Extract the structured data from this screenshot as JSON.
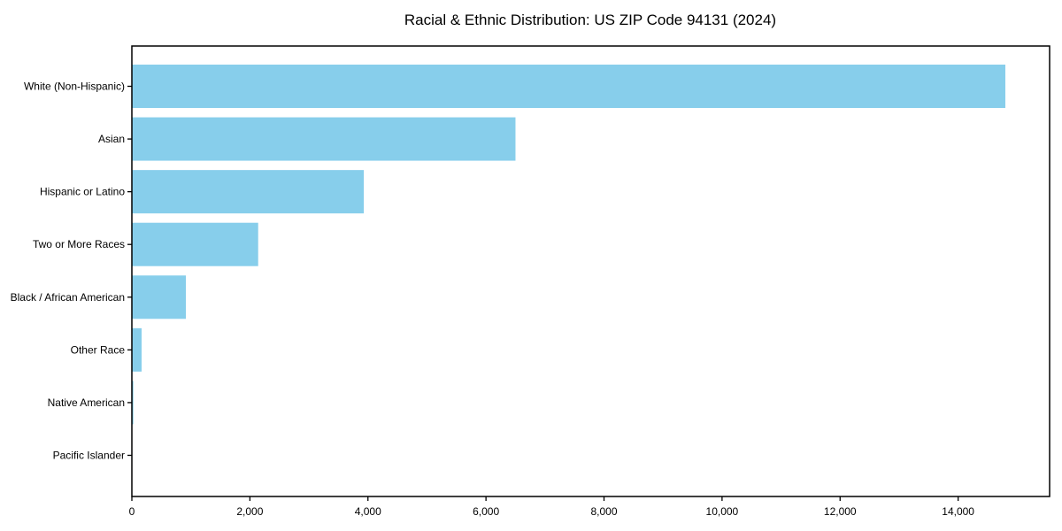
{
  "title": "Racial & Ethnic Distribution: US ZIP Code 94131 (2024)",
  "colors": {
    "bar": "#87CEEB",
    "axis": "#000000",
    "text": "#000000",
    "background": "#ffffff"
  },
  "chart_data": {
    "type": "bar",
    "orientation": "horizontal",
    "title": "Racial & Ethnic Distribution: US ZIP Code 94131 (2024)",
    "categories": [
      "White (Non-Hispanic)",
      "Asian",
      "Hispanic or Latino",
      "Two or More Races",
      "Black / African American",
      "Other Race",
      "Native American",
      "Pacific Islander"
    ],
    "values": [
      14800,
      6500,
      3930,
      2140,
      915,
      165,
      25,
      8
    ],
    "xlabel": "",
    "ylabel": "",
    "xlim": [
      0,
      15550
    ],
    "x_ticks": [
      0,
      2000,
      4000,
      6000,
      8000,
      10000,
      12000,
      14000
    ],
    "x_tick_labels": [
      "0",
      "2,000",
      "4,000",
      "6,000",
      "8,000",
      "10,000",
      "12,000",
      "14,000"
    ],
    "bar_color": "#87CEEB",
    "grid": false,
    "legend": null
  }
}
